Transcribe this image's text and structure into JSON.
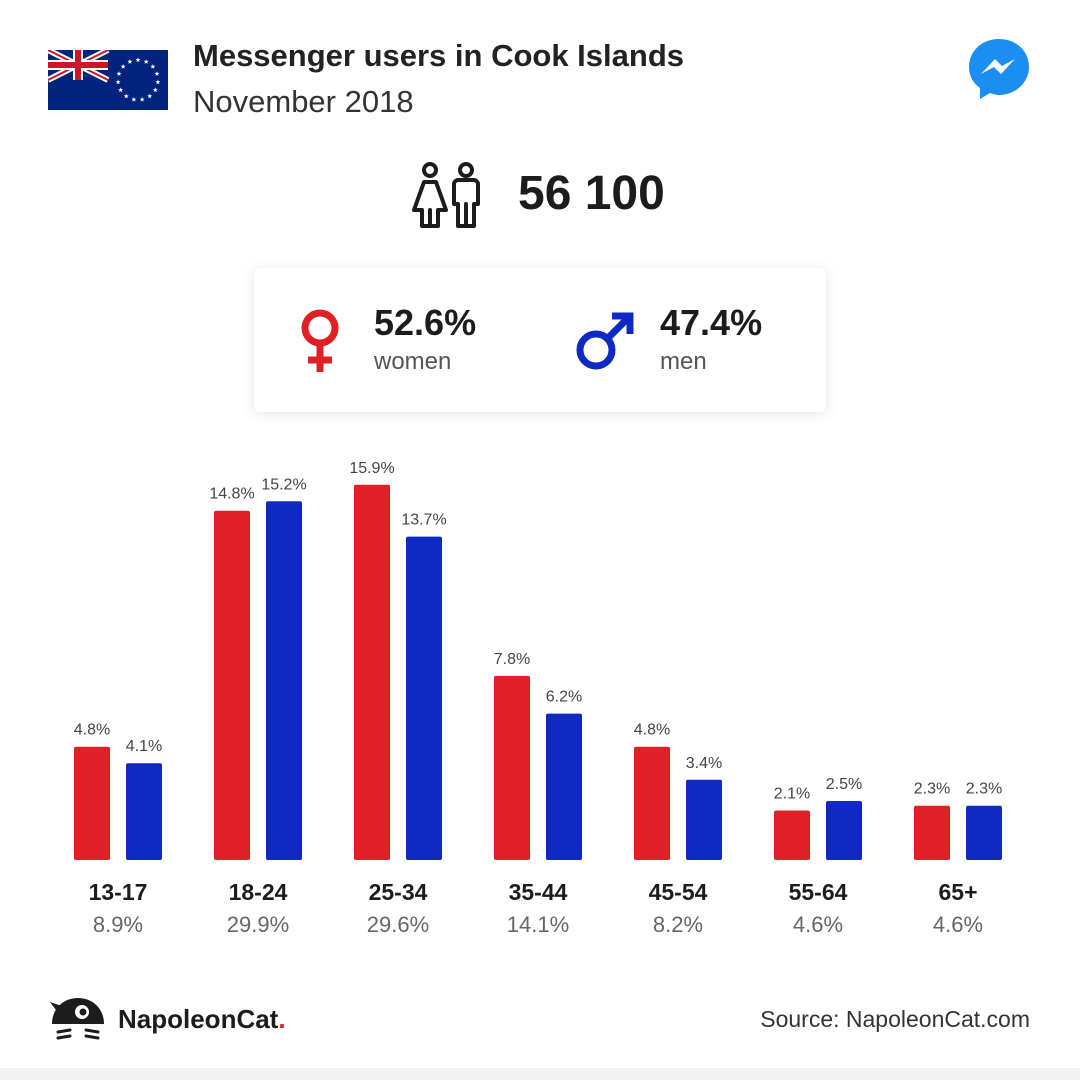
{
  "header": {
    "title": "Messenger users in Cook Islands",
    "subtitle": "November 2018"
  },
  "icons": {
    "flag": "cook-islands-flag-icon",
    "app": "messenger-icon",
    "users": "people-icon",
    "female": "female-symbol-icon",
    "male": "male-symbol-icon",
    "brand": "napoleoncat-logo-icon"
  },
  "colors": {
    "women": "#df2027",
    "men": "#0f2ac3"
  },
  "total": {
    "value": "56 100"
  },
  "gender": {
    "women": {
      "pct": "52.6%",
      "label": "women"
    },
    "men": {
      "pct": "47.4%",
      "label": "men"
    }
  },
  "chart_data": {
    "type": "bar",
    "categories": [
      "13-17",
      "18-24",
      "25-34",
      "35-44",
      "45-54",
      "55-64",
      "65+"
    ],
    "category_totals": [
      "8.9%",
      "29.9%",
      "29.6%",
      "14.1%",
      "8.2%",
      "4.6%",
      "4.6%"
    ],
    "series": [
      {
        "values": [
          4.8,
          14.8,
          15.9,
          7.8,
          4.8,
          2.1,
          2.3
        ],
        "labels": [
          "4.8%",
          "14.8%",
          "15.9%",
          "7.8%",
          "4.8%",
          "2.1%",
          "2.3%"
        ],
        "color": "#df2027"
      },
      {
        "values": [
          4.1,
          15.2,
          13.7,
          6.2,
          3.4,
          2.5,
          2.3
        ],
        "labels": [
          "4.1%",
          "15.2%",
          "13.7%",
          "6.2%",
          "3.4%",
          "2.5%",
          "2.3%"
        ],
        "color": "#0f2ac3"
      }
    ],
    "ylim": [
      0,
      16
    ],
    "grid": false,
    "legend": "none"
  },
  "footer": {
    "brand": "NapoleonCat",
    "brand_dot": ".",
    "source": "Source: NapoleonCat.com"
  }
}
